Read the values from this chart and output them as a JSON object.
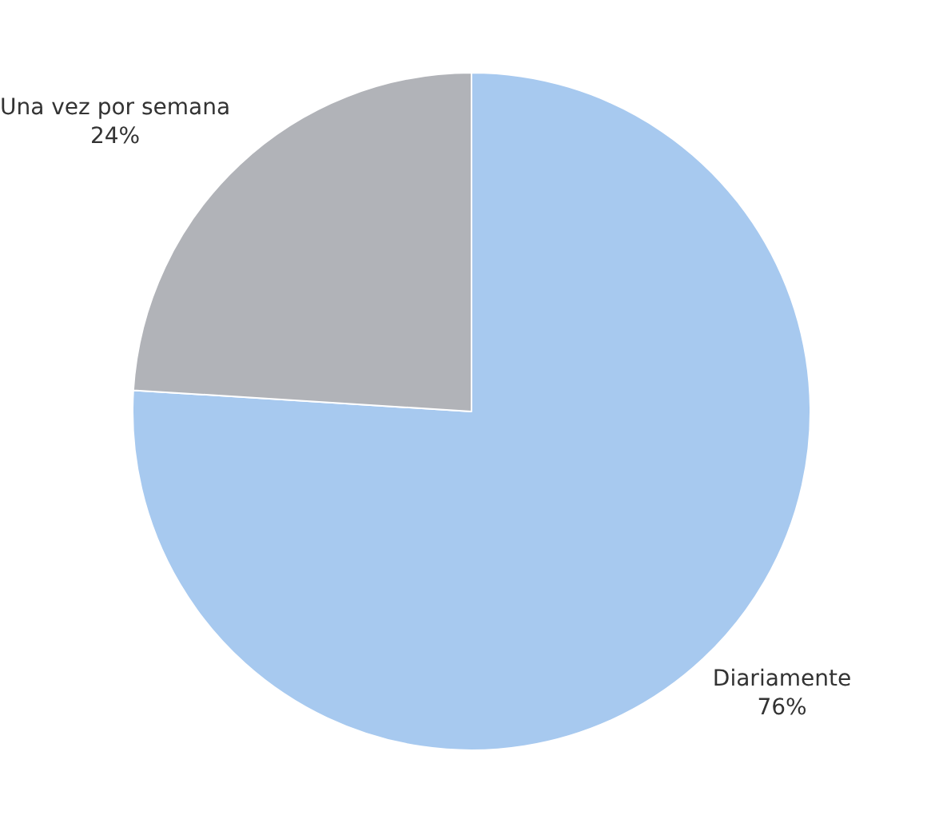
{
  "chart_data": {
    "type": "pie",
    "categories": [
      "Diariamente",
      "Una vez por semana"
    ],
    "values": [
      76,
      24
    ],
    "colors": [
      "#a7c9ef",
      "#b1b3b8"
    ],
    "value_labels": [
      "76%",
      "24%"
    ],
    "legend": false
  }
}
